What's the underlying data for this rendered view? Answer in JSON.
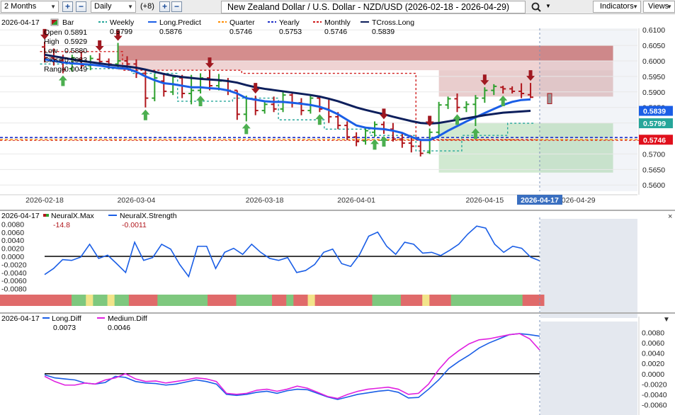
{
  "toolbar": {
    "period": "2 Months",
    "interval": "Daily",
    "indicator_count": "(+8)",
    "instrument_title": "New Zealand Dollar / U.S. Dollar - NZD/USD (2026-02-18 - 2026-04-29)",
    "indicators_label": "Indicators",
    "views_label": "Views"
  },
  "colors": {
    "up_bar": "#2ea02e",
    "down_bar": "#b0161c",
    "weekly": "#26a69a",
    "long_predict": "#1a5ee6",
    "quarter": "#ff8c00",
    "yearly": "#1e2fc8",
    "monthly": "#d01c1c",
    "tcross_long": "#0d1f5c",
    "neuralx_strength": "#1a5ee6",
    "medium_diff": "#e020e0",
    "long_diff": "#1a5ee6"
  },
  "chart_data": [
    {
      "type": "bar",
      "panel": "price",
      "instrument": "NZD/USD",
      "date_label": "2026-04-17",
      "ohlc_readout": {
        "labels": [
          "Open",
          "High",
          "Low",
          "Close",
          "Range"
        ],
        "values": [
          "0.5891",
          "0.5929",
          "0.5880",
          "0.5883",
          "0.0049"
        ]
      },
      "legend": [
        {
          "name": "Bar",
          "value": ""
        },
        {
          "name": "Weekly",
          "value": "0.5799"
        },
        {
          "name": "Long.Predict",
          "value": "0.5876"
        },
        {
          "name": "Quarter",
          "value": "0.5746"
        },
        {
          "name": "Yearly",
          "value": "0.5753"
        },
        {
          "name": "Monthly",
          "value": "0.5746"
        },
        {
          "name": "TCross.Long",
          "value": "0.5839"
        }
      ],
      "x_ticks": [
        "2026-02-18",
        "2026-03-04",
        "2026-03-18",
        "2026-04-01",
        "2026-04-15",
        "2026-04-29"
      ],
      "cursor_date": "2026-04-17",
      "ylim": [
        0.558,
        0.6105
      ],
      "y_ticks": [
        "0.6100",
        "0.6050",
        "0.6000",
        "0.5950",
        "0.5900",
        "0.5850",
        "0.5800",
        "0.5750",
        "0.5700",
        "0.5650",
        "0.5600"
      ],
      "price_tags": [
        {
          "label": "0.5839",
          "color": "#1a5ee6"
        },
        {
          "label": "0.5799",
          "color": "#26a69a"
        },
        {
          "label": "0.5746",
          "color": "#e0101c"
        }
      ],
      "bars": [
        {
          "o": 0.6045,
          "h": 0.6062,
          "l": 0.5995,
          "c": 0.601
        },
        {
          "o": 0.601,
          "h": 0.604,
          "l": 0.5985,
          "c": 0.6005
        },
        {
          "o": 0.6002,
          "h": 0.602,
          "l": 0.596,
          "c": 0.5972
        },
        {
          "o": 0.5975,
          "h": 0.602,
          "l": 0.5965,
          "c": 0.601
        },
        {
          "o": 0.6005,
          "h": 0.603,
          "l": 0.5975,
          "c": 0.5985
        },
        {
          "o": 0.5985,
          "h": 0.6018,
          "l": 0.597,
          "c": 0.6008
        },
        {
          "o": 0.6005,
          "h": 0.6025,
          "l": 0.5985,
          "c": 0.5998
        },
        {
          "o": 0.5998,
          "h": 0.6008,
          "l": 0.5975,
          "c": 0.599
        },
        {
          "o": 0.599,
          "h": 0.6058,
          "l": 0.5978,
          "c": 0.6
        },
        {
          "o": 0.6,
          "h": 0.6015,
          "l": 0.5975,
          "c": 0.599
        },
        {
          "o": 0.599,
          "h": 0.6005,
          "l": 0.5945,
          "c": 0.596
        },
        {
          "o": 0.596,
          "h": 0.5968,
          "l": 0.585,
          "c": 0.588
        },
        {
          "o": 0.588,
          "h": 0.5958,
          "l": 0.587,
          "c": 0.5945
        },
        {
          "o": 0.5935,
          "h": 0.5958,
          "l": 0.5885,
          "c": 0.5902
        },
        {
          "o": 0.59,
          "h": 0.5955,
          "l": 0.589,
          "c": 0.5948
        },
        {
          "o": 0.5945,
          "h": 0.5955,
          "l": 0.588,
          "c": 0.5895
        },
        {
          "o": 0.5895,
          "h": 0.5955,
          "l": 0.586,
          "c": 0.5905
        },
        {
          "o": 0.5905,
          "h": 0.596,
          "l": 0.5895,
          "c": 0.5945
        },
        {
          "o": 0.5945,
          "h": 0.597,
          "l": 0.5905,
          "c": 0.592
        },
        {
          "o": 0.592,
          "h": 0.5958,
          "l": 0.5905,
          "c": 0.5935
        },
        {
          "o": 0.5935,
          "h": 0.5945,
          "l": 0.589,
          "c": 0.5905
        },
        {
          "o": 0.5905,
          "h": 0.5905,
          "l": 0.581,
          "c": 0.5828
        },
        {
          "o": 0.5828,
          "h": 0.5888,
          "l": 0.5805,
          "c": 0.5878
        },
        {
          "o": 0.5875,
          "h": 0.5888,
          "l": 0.5825,
          "c": 0.584
        },
        {
          "o": 0.584,
          "h": 0.5868,
          "l": 0.583,
          "c": 0.586
        },
        {
          "o": 0.586,
          "h": 0.5885,
          "l": 0.5835,
          "c": 0.5845
        },
        {
          "o": 0.5845,
          "h": 0.59,
          "l": 0.5835,
          "c": 0.589
        },
        {
          "o": 0.589,
          "h": 0.5898,
          "l": 0.585,
          "c": 0.5865
        },
        {
          "o": 0.5865,
          "h": 0.588,
          "l": 0.5825,
          "c": 0.584
        },
        {
          "o": 0.584,
          "h": 0.589,
          "l": 0.583,
          "c": 0.588
        },
        {
          "o": 0.588,
          "h": 0.5885,
          "l": 0.5835,
          "c": 0.5845
        },
        {
          "o": 0.5845,
          "h": 0.5875,
          "l": 0.58,
          "c": 0.582
        },
        {
          "o": 0.582,
          "h": 0.5835,
          "l": 0.578,
          "c": 0.5792
        },
        {
          "o": 0.5792,
          "h": 0.5805,
          "l": 0.5745,
          "c": 0.5755
        },
        {
          "o": 0.5755,
          "h": 0.577,
          "l": 0.5725,
          "c": 0.574
        },
        {
          "o": 0.5742,
          "h": 0.5785,
          "l": 0.573,
          "c": 0.5775
        },
        {
          "o": 0.577,
          "h": 0.5805,
          "l": 0.5755,
          "c": 0.5795
        },
        {
          "o": 0.5795,
          "h": 0.5805,
          "l": 0.5765,
          "c": 0.578
        },
        {
          "o": 0.578,
          "h": 0.58,
          "l": 0.574,
          "c": 0.5748
        },
        {
          "o": 0.5748,
          "h": 0.5765,
          "l": 0.572,
          "c": 0.5735
        },
        {
          "o": 0.5735,
          "h": 0.576,
          "l": 0.5705,
          "c": 0.5725
        },
        {
          "o": 0.5725,
          "h": 0.5745,
          "l": 0.5692,
          "c": 0.5702
        },
        {
          "o": 0.5705,
          "h": 0.5782,
          "l": 0.57,
          "c": 0.577
        },
        {
          "o": 0.577,
          "h": 0.5868,
          "l": 0.576,
          "c": 0.5858
        },
        {
          "o": 0.5858,
          "h": 0.5885,
          "l": 0.5845,
          "c": 0.5878
        },
        {
          "o": 0.5878,
          "h": 0.5895,
          "l": 0.5835,
          "c": 0.585
        },
        {
          "o": 0.585,
          "h": 0.587,
          "l": 0.5835,
          "c": 0.586
        },
        {
          "o": 0.586,
          "h": 0.589,
          "l": 0.579,
          "c": 0.588
        },
        {
          "o": 0.588,
          "h": 0.5915,
          "l": 0.5865,
          "c": 0.5905
        },
        {
          "o": 0.5905,
          "h": 0.5925,
          "l": 0.589,
          "c": 0.5918
        },
        {
          "o": 0.5915,
          "h": 0.592,
          "l": 0.5895,
          "c": 0.591
        },
        {
          "o": 0.591,
          "h": 0.5918,
          "l": 0.5895,
          "c": 0.5902
        },
        {
          "o": 0.5902,
          "h": 0.5928,
          "l": 0.588,
          "c": 0.5895
        },
        {
          "o": 0.5891,
          "h": 0.5929,
          "l": 0.588,
          "c": 0.5883
        }
      ],
      "next_bar": {
        "o": 0.5895,
        "h": 0.59,
        "l": 0.585,
        "c": 0.5862
      },
      "series": [
        {
          "name": "Long.Predict",
          "values": [
            0.6005,
            0.6,
            0.5995,
            0.5992,
            0.599,
            0.5988,
            0.5985,
            0.598,
            0.5977,
            0.5975,
            0.5965,
            0.595,
            0.5938,
            0.5928,
            0.5925,
            0.592,
            0.5915,
            0.5915,
            0.5912,
            0.591,
            0.5905,
            0.5895,
            0.588,
            0.5875,
            0.587,
            0.5868,
            0.5868,
            0.5865,
            0.5862,
            0.5858,
            0.5852,
            0.5842,
            0.5828,
            0.581,
            0.5792,
            0.5785,
            0.5782,
            0.578,
            0.5775,
            0.5768,
            0.5755,
            0.5745,
            0.5745,
            0.5758,
            0.5775,
            0.579,
            0.5805,
            0.5818,
            0.5832,
            0.5845,
            0.5858,
            0.5868,
            0.5874,
            0.5876
          ]
        },
        {
          "name": "TCross.Long",
          "values": [
            0.602,
            0.6015,
            0.601,
            0.6005,
            0.6,
            0.5996,
            0.5992,
            0.5988,
            0.5985,
            0.5982,
            0.5978,
            0.5972,
            0.5965,
            0.5958,
            0.5952,
            0.5948,
            0.5945,
            0.5942,
            0.594,
            0.5938,
            0.5935,
            0.593,
            0.5922,
            0.5915,
            0.591,
            0.5906,
            0.5902,
            0.5898,
            0.5894,
            0.589,
            0.5885,
            0.5878,
            0.587,
            0.586,
            0.585,
            0.5842,
            0.5835,
            0.5828,
            0.582,
            0.5813,
            0.5806,
            0.58,
            0.5798,
            0.58,
            0.5805,
            0.581,
            0.5815,
            0.582,
            0.5825,
            0.5829,
            0.5833,
            0.5835,
            0.5837,
            0.5839
          ]
        }
      ],
      "weekly_steps": [
        0.599,
        0.599,
        0.599,
        0.599,
        0.599,
        0.5975,
        0.5975,
        0.5975,
        0.5975,
        0.5975,
        0.596,
        0.596,
        0.596,
        0.596,
        0.596,
        0.587,
        0.587,
        0.587,
        0.587,
        0.587,
        0.587,
        0.588,
        0.588,
        0.588,
        0.588,
        0.588,
        0.581,
        0.581,
        0.581,
        0.581,
        0.581,
        0.578,
        0.578,
        0.578,
        0.578,
        0.578,
        0.576,
        0.576,
        0.576,
        0.576,
        0.576,
        0.571,
        0.571,
        0.571,
        0.571,
        0.571,
        0.576,
        0.576,
        0.576,
        0.576,
        0.576,
        0.5799,
        0.5799,
        0.5799
      ],
      "monthly_steps": [
        0.603,
        0.603,
        0.603,
        0.603,
        0.603,
        0.603,
        0.603,
        0.603,
        0.603,
        0.597,
        0.597,
        0.597,
        0.597,
        0.597,
        0.597,
        0.597,
        0.597,
        0.597,
        0.597,
        0.597,
        0.597,
        0.597,
        0.596,
        0.596,
        0.596,
        0.596,
        0.596,
        0.596,
        0.596,
        0.596,
        0.596,
        0.596,
        0.596,
        0.596,
        0.596,
        0.596,
        0.596,
        0.596,
        0.596,
        0.596,
        0.596,
        0.5746,
        0.5746,
        0.5746,
        0.5746,
        0.5746,
        0.5746,
        0.5746,
        0.5746,
        0.5746,
        0.5746,
        0.5746,
        0.5746,
        0.5746
      ],
      "levels": {
        "quarter": 0.5746,
        "yearly": 0.5753
      },
      "zones": [
        {
          "from_bar": 8,
          "to_bar": 62,
          "y0": 0.6,
          "y1": 0.605,
          "color": "#b03030",
          "opacity": 0.55
        },
        {
          "from_bar": 8,
          "to_bar": 62,
          "y0": 0.597,
          "y1": 0.6,
          "color": "#d08080",
          "opacity": 0.35
        },
        {
          "from_bar": 43,
          "to_bar": 62,
          "y0": 0.5885,
          "y1": 0.597,
          "color": "#c07070",
          "opacity": 0.35
        },
        {
          "from_bar": 43,
          "to_bar": 62,
          "y0": 0.564,
          "y1": 0.5799,
          "color": "#7cc07c",
          "opacity": 0.35
        }
      ],
      "arrows_up": [
        2,
        11,
        17,
        22,
        30,
        36,
        37,
        45,
        47,
        50
      ],
      "arrows_down": [
        0,
        6,
        8,
        18,
        23,
        37,
        42,
        48,
        53
      ]
    },
    {
      "type": "line",
      "panel": "neuralx",
      "date_label": "2026-04-17",
      "legend": [
        {
          "name": "NeuralX.Max",
          "value": "-14.8"
        },
        {
          "name": "NeuralX.Strength",
          "value": "-0.0011"
        }
      ],
      "ylim": [
        -0.01,
        0.01
      ],
      "y_ticks": [
        "0.0080",
        "0.0060",
        "0.0040",
        "0.0020",
        "0.0000",
        "-0.0020",
        "-0.0040",
        "-0.0060",
        "-0.0080"
      ],
      "series": [
        {
          "name": "NeuralX.Strength",
          "values": [
            -0.0045,
            -0.003,
            -0.0008,
            -0.001,
            -0.0002,
            0.003,
            -0.0005,
            0.0003,
            -0.0018,
            -0.004,
            0.0035,
            -0.001,
            -0.0003,
            0.003,
            0.0018,
            -0.002,
            -0.005,
            0.0025,
            0.0025,
            -0.003,
            0.001,
            0.002,
            0.0005,
            0.003,
            0.001,
            -0.0005,
            -0.001,
            -0.0003,
            -0.004,
            -0.0035,
            -0.002,
            0.001,
            0.0018,
            -0.0018,
            -0.0025,
            0.0005,
            0.005,
            0.006,
            0.0025,
            0.0005,
            0.0035,
            0.003,
            0.0008,
            0.001,
            0.0002,
            0.0015,
            0.003,
            0.0055,
            0.0075,
            0.007,
            0.003,
            0.001,
            0.0025,
            0.002,
            -0.0002,
            -0.0011
          ]
        }
      ],
      "color_blocks": [
        "r",
        "r",
        "r",
        "r",
        "r",
        "r",
        "r",
        "r",
        "r",
        "r",
        "g",
        "g",
        "y",
        "g",
        "g",
        "y",
        "g",
        "g",
        "r",
        "r",
        "r",
        "r",
        "g",
        "g",
        "g",
        "g",
        "g",
        "g",
        "g",
        "r",
        "r",
        "r",
        "r",
        "g",
        "g",
        "g",
        "g",
        "g",
        "r",
        "r",
        "g",
        "r",
        "r",
        "y",
        "r",
        "r",
        "r",
        "r",
        "r",
        "r",
        "r",
        "r",
        "g",
        "g",
        "g",
        "g",
        "r",
        "r",
        "r",
        "y",
        "r",
        "r",
        "r",
        "g",
        "g",
        "g",
        "g",
        "g",
        "g",
        "g",
        "g",
        "g",
        "g",
        "r",
        "r",
        "r"
      ]
    },
    {
      "type": "line",
      "panel": "diff",
      "date_label": "2026-04-17",
      "legend": [
        {
          "name": "Long.Diff",
          "value": "0.0073"
        },
        {
          "name": "Medium.Diff",
          "value": "0.0046"
        }
      ],
      "ylim": [
        -0.0065,
        0.0085
      ],
      "y_ticks": [
        "0.0080",
        "0.0060",
        "0.0040",
        "0.0020",
        "0.0000",
        "-0.0020",
        "-0.0040",
        "-0.0060"
      ],
      "series": [
        {
          "name": "Long.Diff",
          "values": [
            -0.0002,
            -0.0008,
            -0.001,
            -0.0012,
            -0.0018,
            -0.002,
            -0.0017,
            -0.0005,
            -0.0007,
            -0.0015,
            -0.0018,
            -0.0019,
            -0.0022,
            -0.002,
            -0.0016,
            -0.0012,
            -0.0015,
            -0.002,
            -0.004,
            -0.0042,
            -0.004,
            -0.0036,
            -0.0034,
            -0.0038,
            -0.0033,
            -0.003,
            -0.0031,
            -0.0038,
            -0.0045,
            -0.005,
            -0.0045,
            -0.004,
            -0.0037,
            -0.0034,
            -0.0032,
            -0.0036,
            -0.0047,
            -0.0046,
            -0.003,
            -0.0012,
            0.001,
            0.0024,
            0.0036,
            0.005,
            0.006,
            0.0068,
            0.0076,
            0.0078,
            0.0076,
            0.0073
          ]
        },
        {
          "name": "Medium.Diff",
          "values": [
            -0.0005,
            -0.0015,
            -0.0022,
            -0.0022,
            -0.0018,
            -0.002,
            -0.0012,
            -0.0008,
            0.0,
            -0.001,
            -0.0015,
            -0.0014,
            -0.0018,
            -0.0015,
            -0.0012,
            -0.0008,
            -0.001,
            -0.0015,
            -0.0038,
            -0.004,
            -0.0038,
            -0.0032,
            -0.003,
            -0.0034,
            -0.003,
            -0.0024,
            -0.0028,
            -0.0036,
            -0.0044,
            -0.0048,
            -0.004,
            -0.0034,
            -0.003,
            -0.0028,
            -0.0026,
            -0.003,
            -0.004,
            -0.0038,
            -0.002,
            0.0008,
            0.003,
            0.0045,
            0.0058,
            0.0066,
            0.0068,
            0.0072,
            0.0076,
            0.0078,
            0.0068,
            0.0046
          ]
        }
      ]
    }
  ]
}
